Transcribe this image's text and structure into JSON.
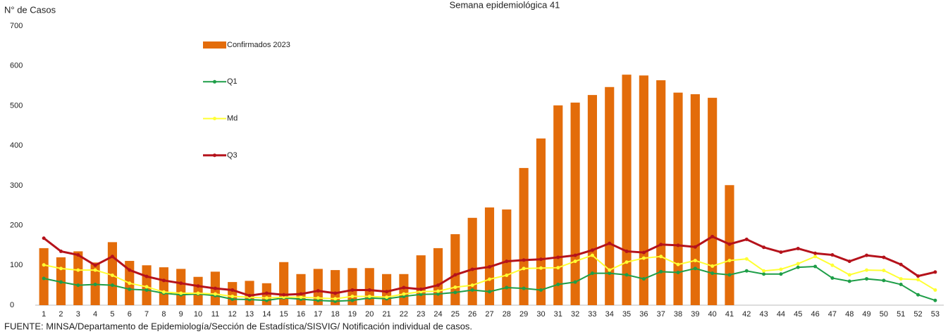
{
  "chart_data": {
    "type": "bar",
    "title": "Semana epidemiológica 41",
    "y_label": "N° de Casos",
    "source": "FUENTE:  MINSA/Departamento  de Epidemiología/Sección de Estadística/SISVIG/ Notificación individual de casos.",
    "categories": [
      "1",
      "2",
      "3",
      "4",
      "5",
      "6",
      "7",
      "8",
      "9",
      "10",
      "11",
      "12",
      "13",
      "14",
      "15",
      "16",
      "17",
      "18",
      "19",
      "20",
      "21",
      "22",
      "23",
      "24",
      "25",
      "26",
      "27",
      "28",
      "29",
      "30",
      "31",
      "32",
      "33",
      "34",
      "35",
      "36",
      "37",
      "38",
      "39",
      "40",
      "41",
      "42",
      "43",
      "44",
      "45",
      "46",
      "47",
      "48",
      "49",
      "50",
      "51",
      "52",
      "53"
    ],
    "ylim": [
      0,
      700
    ],
    "yticks": [
      0,
      100,
      200,
      300,
      400,
      500,
      600,
      700
    ],
    "series": [
      {
        "name": "Confirmados 2023",
        "type": "bar",
        "color": "#e36c0a",
        "values": [
          143,
          120,
          135,
          107,
          158,
          111,
          100,
          95,
          91,
          71,
          84,
          58,
          61,
          55,
          108,
          78,
          91,
          88,
          93,
          93,
          78,
          78,
          125,
          143,
          178,
          219,
          245,
          240,
          344,
          418,
          501,
          508,
          527,
          547,
          578,
          576,
          564,
          533,
          529,
          520,
          301,
          null,
          null,
          null,
          null,
          null,
          null,
          null,
          null,
          null,
          null,
          null,
          null
        ]
      },
      {
        "name": "Q1",
        "type": "line",
        "color": "#1e9e48",
        "values": [
          67,
          58,
          50,
          52,
          50,
          40,
          38,
          30,
          26,
          28,
          24,
          15,
          14,
          12,
          18,
          15,
          12,
          10,
          12,
          18,
          16,
          22,
          27,
          28,
          32,
          38,
          34,
          44,
          42,
          38,
          52,
          58,
          80,
          80,
          76,
          66,
          84,
          82,
          92,
          80,
          76,
          86,
          78,
          78,
          95,
          97,
          68,
          60,
          66,
          62,
          52,
          26,
          12
        ]
      },
      {
        "name": "Md",
        "type": "line",
        "color": "#ffff33",
        "values": [
          101,
          92,
          88,
          88,
          75,
          55,
          46,
          33,
          30,
          30,
          28,
          22,
          20,
          18,
          20,
          20,
          18,
          16,
          22,
          22,
          20,
          28,
          34,
          35,
          45,
          50,
          65,
          75,
          92,
          93,
          94,
          110,
          125,
          88,
          108,
          118,
          122,
          102,
          112,
          98,
          112,
          116,
          86,
          90,
          104,
          122,
          100,
          76,
          88,
          87,
          66,
          64,
          38
        ]
      },
      {
        "name": "Q3",
        "type": "line",
        "color": "#b5121b",
        "values": [
          168,
          135,
          126,
          100,
          122,
          88,
          72,
          62,
          55,
          48,
          42,
          38,
          24,
          30,
          26,
          28,
          36,
          30,
          38,
          38,
          34,
          44,
          40,
          50,
          76,
          90,
          96,
          110,
          113,
          115,
          120,
          125,
          138,
          155,
          135,
          132,
          152,
          150,
          146,
          172,
          153,
          165,
          145,
          133,
          142,
          130,
          126,
          110,
          125,
          120,
          102,
          73,
          83
        ]
      }
    ]
  }
}
